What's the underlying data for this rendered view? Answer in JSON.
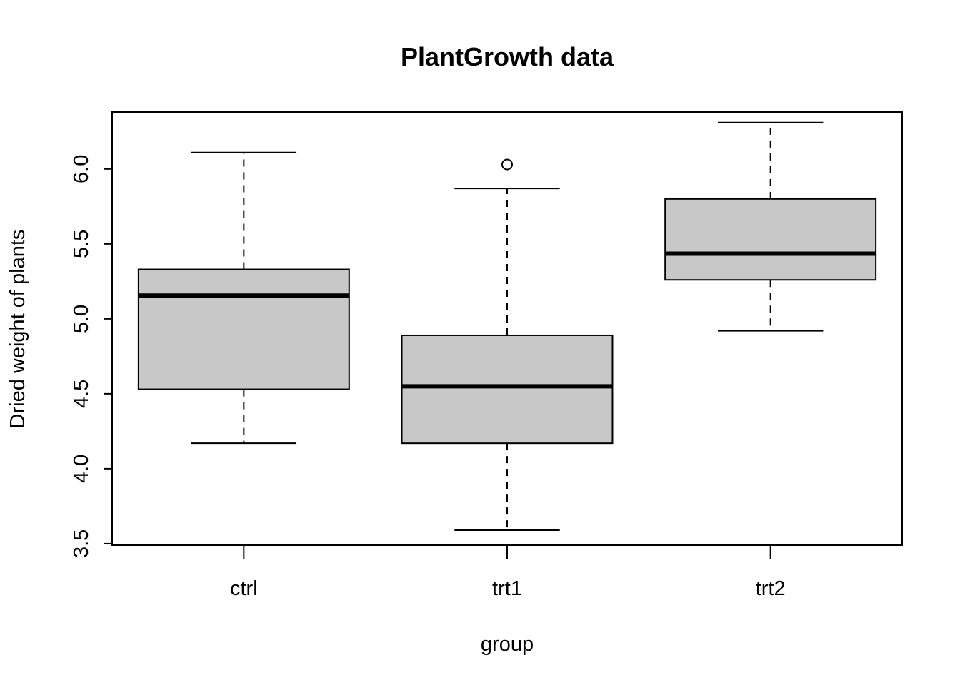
{
  "chart_data": {
    "type": "box",
    "title": "PlantGrowth data",
    "xlabel": "group",
    "ylabel": "Dried weight of plants",
    "categories": [
      "ctrl",
      "trt1",
      "trt2"
    ],
    "yticks": [
      "3.5",
      "4.0",
      "4.5",
      "5.0",
      "5.5",
      "6.0"
    ],
    "ytick_values": [
      3.5,
      4.0,
      4.5,
      5.0,
      5.5,
      6.0
    ],
    "ylim": [
      3.49,
      6.38
    ],
    "grid": false,
    "box_fill": "#c8c8c8",
    "boxes": [
      {
        "category": "ctrl",
        "whisker_low": 4.17,
        "q1": 4.53,
        "median": 5.155,
        "q3": 5.33,
        "whisker_high": 6.11,
        "outliers": []
      },
      {
        "category": "trt1",
        "whisker_low": 3.59,
        "q1": 4.17,
        "median": 4.55,
        "q3": 4.89,
        "whisker_high": 5.87,
        "outliers": [
          6.03
        ]
      },
      {
        "category": "trt2",
        "whisker_low": 4.92,
        "q1": 5.26,
        "median": 5.435,
        "q3": 5.8,
        "whisker_high": 6.31,
        "outliers": []
      }
    ]
  }
}
